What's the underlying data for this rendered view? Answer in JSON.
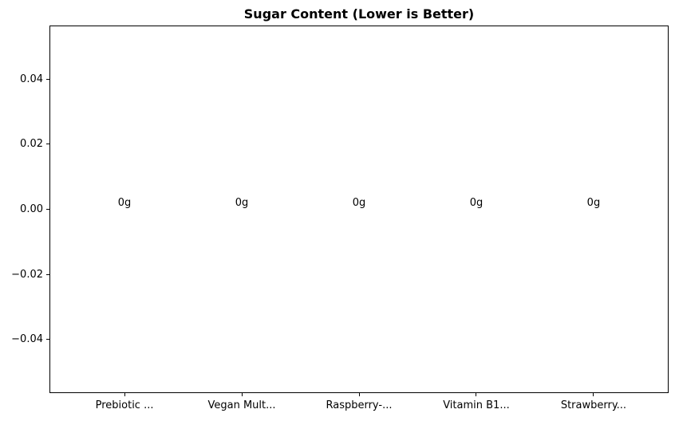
{
  "chart_data": {
    "type": "bar",
    "title": "Sugar Content (Lower is Better)",
    "categories": [
      "Prebiotic ...",
      "Vegan Mult...",
      "Raspberry-...",
      "Vitamin B1...",
      "Strawberry..."
    ],
    "values": [
      0,
      0,
      0,
      0,
      0
    ],
    "bar_labels": [
      "0g",
      "0g",
      "0g",
      "0g",
      "0g"
    ],
    "xlabel": "",
    "ylabel": "",
    "xlim": [
      -0.64,
      4.64
    ],
    "ylim": [
      -0.0565,
      0.0565
    ],
    "yticks": [
      {
        "v": 0.04,
        "label": "0.04"
      },
      {
        "v": 0.02,
        "label": "0.02"
      },
      {
        "v": 0.0,
        "label": "0.00"
      },
      {
        "v": -0.02,
        "label": "−0.02"
      },
      {
        "v": -0.04,
        "label": "−0.04"
      }
    ],
    "bar_width": 0.8,
    "bar_color": "#1f77b4",
    "grid": false,
    "legend": null,
    "background_color": "#ffffff",
    "spine_color": "#000000",
    "text_color": "#000000"
  }
}
